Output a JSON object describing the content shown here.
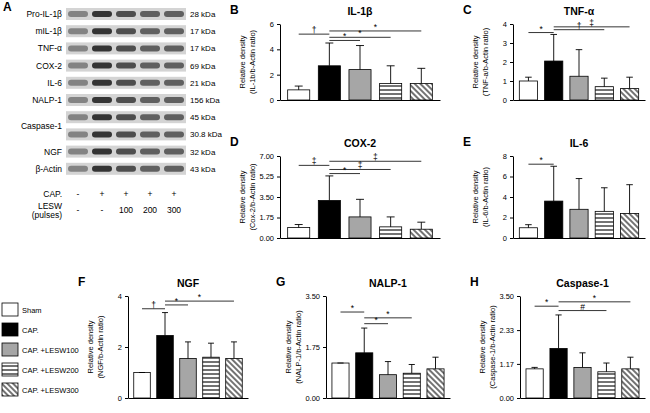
{
  "blot": {
    "panel": "A",
    "rows": [
      {
        "label": "Pro-IL-1β",
        "kda": "28 kDa"
      },
      {
        "label": "mIL-1β",
        "kda": "17 kDa"
      },
      {
        "label": "TNF-α",
        "kda": "17 kDa"
      },
      {
        "label": "COX-2",
        "kda": "69 kDa"
      },
      {
        "label": "IL-6",
        "kda": "21 kDa"
      },
      {
        "label": "NALP-1",
        "kda": "156 kDa"
      },
      {
        "label": "Caspase-1",
        "kda": [
          "45 kDa",
          "30.8 kDa"
        ]
      },
      {
        "label": "NGF",
        "kda": "32 kDa"
      },
      {
        "label": "β-Actin",
        "kda": "43 kDa"
      }
    ],
    "conditions": [
      {
        "label": "CAP.",
        "values": [
          "-",
          "+",
          "+",
          "+",
          "+"
        ]
      },
      {
        "label": [
          "LESW",
          "(pulses)"
        ],
        "values": [
          "-",
          "-",
          "100",
          "200",
          "300"
        ]
      }
    ]
  },
  "legend": {
    "entries": [
      {
        "name": "Sham",
        "color": "#ffffff",
        "marker": "solid"
      },
      {
        "name": "CAP.",
        "color": "#000000",
        "marker": "solid"
      },
      {
        "name": "CAP. +LESW100",
        "color": "#a6a6a6",
        "marker": "solid"
      },
      {
        "name": "CAP. +LESW200",
        "color": "#ffffff",
        "marker": "horizontal-stripes"
      },
      {
        "name": "CAP. +LESW300",
        "color": "#ffffff",
        "marker": "diagonal-stripes"
      }
    ]
  },
  "chart_data": [
    {
      "type": "bar",
      "panel": "B",
      "title": "IL-1β",
      "ylabel": [
        "Relative density",
        "(IL-1b/b-Actin ratio)"
      ],
      "categories": [
        null,
        null,
        null,
        null,
        null
      ],
      "values": [
        0.8,
        2.7,
        2.4,
        1.3,
        1.3
      ],
      "errors": [
        0.3,
        1.8,
        1.9,
        1.4,
        1.2
      ],
      "ylim": [
        0,
        6
      ],
      "yticks": [
        0,
        2,
        4,
        6
      ],
      "annotations": [
        {
          "text": "*",
          "from": 1,
          "to": 2,
          "y": 4.7
        },
        {
          "text": "*",
          "from": 1,
          "to": 3,
          "y": 4.95
        },
        {
          "text": "†",
          "from": 0,
          "to": 1,
          "y": 5.2
        },
        {
          "text": "*",
          "from": 1,
          "to": 4,
          "y": 5.45
        }
      ]
    },
    {
      "type": "bar",
      "panel": "C",
      "title": "TNF-α",
      "ylabel": [
        "Relative density",
        "(TNF-a/b-Actin ratio)"
      ],
      "categories": [
        null,
        null,
        null,
        null,
        null
      ],
      "values": [
        1.0,
        2.05,
        1.25,
        0.7,
        0.6
      ],
      "errors": [
        0.2,
        1.4,
        1.4,
        0.45,
        0.6
      ],
      "ylim": [
        0,
        4
      ],
      "yticks": [
        0,
        1,
        2,
        3,
        4
      ],
      "annotations": [
        {
          "text": "*",
          "from": 0,
          "to": 1,
          "y": 3.55
        },
        {
          "text": "†",
          "from": 1,
          "to": 3,
          "y": 3.7
        },
        {
          "text": "‡",
          "from": 1,
          "to": 4,
          "y": 3.85
        }
      ]
    },
    {
      "type": "bar",
      "panel": "D",
      "title": "COX-2",
      "ylabel": [
        "Relative density",
        "(Cox-2/b-Actin ratio)"
      ],
      "categories": [
        null,
        null,
        null,
        null,
        null
      ],
      "values": [
        0.9,
        3.2,
        1.8,
        0.95,
        0.75
      ],
      "errors": [
        0.25,
        2.1,
        1.5,
        0.85,
        0.6
      ],
      "ylim": [
        0,
        7
      ],
      "yticks": [
        {
          "value": 0,
          "label": "0.00"
        },
        1.75,
        {
          "value": 3.5,
          "label": "3.50"
        },
        5.25,
        {
          "value": 7,
          "label": "7.00"
        }
      ],
      "annotations": [
        {
          "text": "*",
          "from": 1,
          "to": 2,
          "y": 5.5
        },
        {
          "text": "‡",
          "from": 1,
          "to": 3,
          "y": 5.85
        },
        {
          "text": "‡",
          "from": 0,
          "to": 1,
          "y": 6.2
        },
        {
          "text": "‡",
          "from": 1,
          "to": 4,
          "y": 6.55
        }
      ]
    },
    {
      "type": "bar",
      "panel": "E",
      "title": "IL-6",
      "ylabel": [
        "Relative density",
        "(IL-6/b-Actin ratio)"
      ],
      "categories": [
        null,
        null,
        null,
        null,
        null
      ],
      "values": [
        1.0,
        3.6,
        2.8,
        2.6,
        2.4
      ],
      "errors": [
        0.3,
        3.4,
        3.0,
        2.3,
        2.8
      ],
      "ylim": [
        0,
        8
      ],
      "yticks": [
        0,
        2,
        4,
        6,
        8
      ],
      "annotations": [
        {
          "text": "*",
          "from": 0,
          "to": 1,
          "y": 7.2
        }
      ]
    },
    {
      "type": "bar",
      "panel": "F",
      "title": "NGF",
      "ylabel": [
        "Relative density",
        "(NGF/b-Actin ratio)"
      ],
      "categories": [
        null,
        null,
        null,
        null,
        null
      ],
      "values": [
        1.0,
        2.45,
        1.55,
        1.6,
        1.55
      ],
      "errors": [
        0,
        0.9,
        0.65,
        0.55,
        0.65
      ],
      "ylim": [
        0,
        4
      ],
      "yticks": [
        0,
        2,
        4
      ],
      "annotations": [
        {
          "text": "†",
          "from": 0,
          "to": 1,
          "y": 3.5
        },
        {
          "text": "*",
          "from": 1,
          "to": 2,
          "y": 3.65
        },
        {
          "text": "*",
          "from": 1,
          "to": 4,
          "y": 3.8
        }
      ]
    },
    {
      "type": "bar",
      "panel": "G",
      "title": "NALP-1",
      "ylabel": [
        "Relative density",
        "(NALP-1/b-Actin ratio)"
      ],
      "categories": [
        null,
        null,
        null,
        null,
        null
      ],
      "values": [
        1.2,
        1.55,
        0.8,
        0.85,
        1.0
      ],
      "errors": [
        0,
        0.85,
        0.45,
        0.3,
        0.4
      ],
      "ylim": [
        0,
        3.5
      ],
      "yticks": [
        {
          "value": 0,
          "label": "0.00"
        },
        1.75,
        {
          "value": 3.5,
          "label": "3.50"
        }
      ],
      "annotations": [
        {
          "text": "*",
          "from": 1,
          "to": 2,
          "y": 2.55
        },
        {
          "text": "*",
          "from": 1,
          "to": 3,
          "y": 2.75
        },
        {
          "text": "*",
          "from": 0,
          "to": 1,
          "y": 2.95
        }
      ]
    },
    {
      "type": "bar",
      "panel": "H",
      "title": "Caspase-1",
      "ylabel": [
        "Relative density",
        "(Caspase-1/b-Actin ratio)"
      ],
      "categories": [
        null,
        null,
        null,
        null,
        null
      ],
      "values": [
        1.0,
        1.7,
        1.05,
        0.9,
        1.0
      ],
      "errors": [
        0.05,
        1.15,
        0.5,
        0.3,
        0.4
      ],
      "ylim": [
        0,
        3.5
      ],
      "yticks": [
        {
          "value": 0,
          "label": "0.00"
        },
        1.17,
        2.33,
        {
          "value": 3.5,
          "label": "3.50"
        }
      ],
      "annotations": [
        {
          "text": "#",
          "from": 1,
          "to": 3,
          "y": 3.0
        },
        {
          "text": "*",
          "from": 0,
          "to": 1,
          "y": 3.15
        },
        {
          "text": "*",
          "from": 1,
          "to": 4,
          "y": 3.3
        }
      ]
    }
  ]
}
